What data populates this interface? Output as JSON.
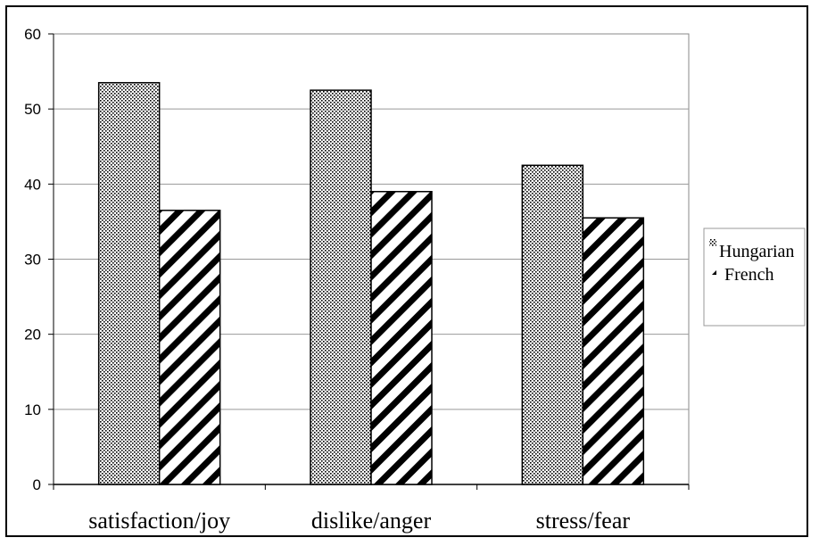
{
  "chart_data": {
    "type": "bar",
    "title": "",
    "xlabel": "",
    "ylabel": "",
    "categories": [
      "satisfaction/joy",
      "dislike/anger",
      "stress/fear"
    ],
    "series": [
      {
        "name": "Hungarian",
        "values": [
          53.5,
          52.5,
          42.5
        ],
        "pattern": "dots"
      },
      {
        "name": "French",
        "values": [
          36.5,
          39,
          35.5
        ],
        "pattern": "diagonal-stripes"
      }
    ],
    "ylim": [
      0,
      60
    ],
    "yticks": [
      "0",
      "10",
      "20",
      "30",
      "40",
      "50",
      "60"
    ],
    "grid": true,
    "legend_position": "right"
  }
}
